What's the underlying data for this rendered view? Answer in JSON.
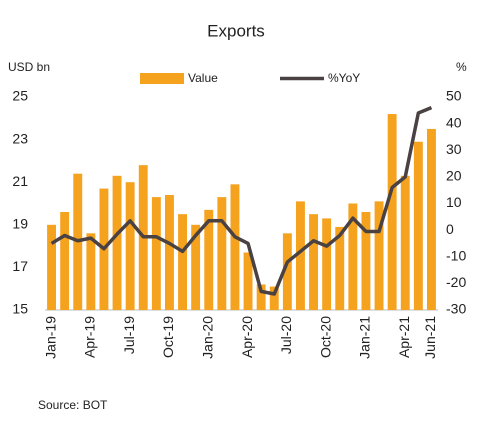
{
  "chart_data": {
    "type": "bar_line",
    "title": "Exports",
    "y_label": "USD bn",
    "y2_label": "%",
    "source": "Source:  BOT",
    "categories": [
      "Jan-19",
      null,
      null,
      "Apr-19",
      null,
      null,
      "Jul-19",
      null,
      null,
      "Oct-19",
      null,
      null,
      "Jan-20",
      null,
      null,
      "Apr-20",
      null,
      null,
      "Jul-20",
      null,
      null,
      "Oct-20",
      null,
      null,
      "Jan-21",
      null,
      null,
      "Apr-21",
      null,
      "Jun-21"
    ],
    "series": [
      {
        "name": "Value",
        "type": "bar",
        "axis": "y",
        "color": "#f5a21e",
        "values": [
          19.0,
          19.6,
          21.4,
          18.6,
          20.7,
          21.3,
          21.0,
          21.8,
          20.3,
          20.4,
          19.5,
          19.0,
          19.7,
          20.3,
          20.9,
          17.7,
          16.2,
          16.1,
          18.6,
          20.1,
          19.5,
          19.3,
          18.9,
          20.0,
          19.6,
          20.1,
          24.2,
          21.3,
          22.9,
          23.5
        ]
      },
      {
        "name": "%YoY",
        "type": "line",
        "axis": "y2",
        "color": "#4a4242",
        "values": [
          -5,
          -2,
          -4,
          -3,
          -7,
          -1.5,
          3.5,
          -2.5,
          -2.5,
          -5,
          -8,
          -2,
          3.5,
          3.5,
          -2.5,
          -5,
          -23,
          -24,
          -12,
          -8,
          -4,
          -6,
          -2,
          4.5,
          -0.5,
          -0.5,
          16,
          20,
          44,
          46
        ]
      }
    ],
    "ylim": [
      15,
      25
    ],
    "yticks": [
      15,
      17,
      19,
      21,
      23,
      25
    ],
    "y2lim": [
      -30,
      50
    ],
    "y2ticks": [
      -30,
      -20,
      -10,
      0,
      10,
      20,
      30,
      40,
      50
    ]
  }
}
